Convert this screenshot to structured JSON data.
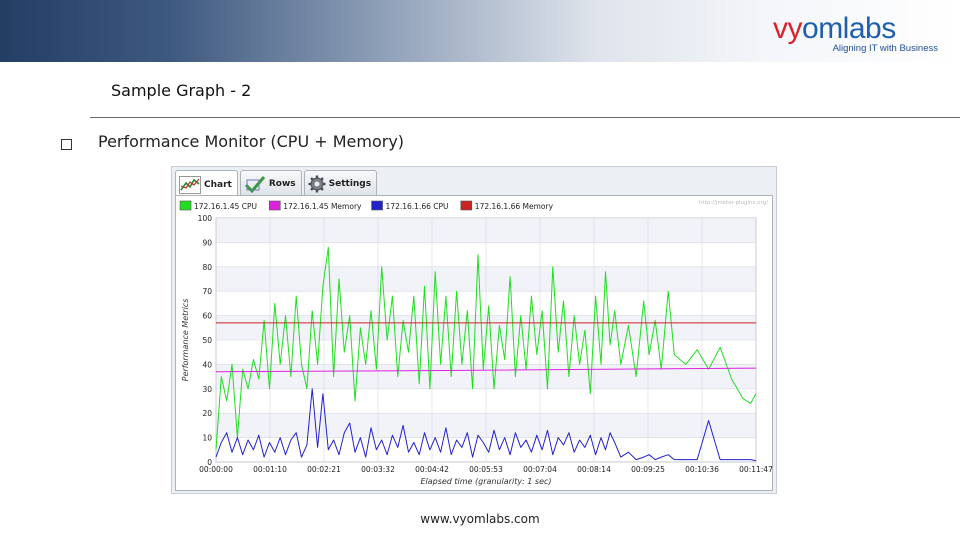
{
  "slide": {
    "title": "Sample Graph - 2",
    "bullet": "Performance Monitor (CPU + Memory)",
    "footer": "www.vyomlabs.com"
  },
  "logo": {
    "word_part1": "vy",
    "word_part2": "o",
    "word_part3": "mlabs",
    "tagline": "Aligning IT with Business"
  },
  "app": {
    "tabs": [
      {
        "label": "Chart",
        "icon": "chart-icon",
        "active": true
      },
      {
        "label": "Rows",
        "icon": "checkmark-icon",
        "active": false
      },
      {
        "label": "Settings",
        "icon": "gear-icon",
        "active": false
      }
    ],
    "watermark": "http://jmeter-plugins.org/"
  },
  "colors": {
    "cpu1": "#22dd22",
    "mem1": "#dd22dd",
    "cpu2": "#2222cc",
    "mem2": "#cc2222"
  },
  "chart_data": {
    "type": "line",
    "ylabel": "Performance Metrics",
    "xlabel": "Elapsed time (granularity: 1 sec)",
    "ylim": [
      0,
      100
    ],
    "yticks": [
      0,
      10,
      20,
      30,
      40,
      50,
      60,
      70,
      80,
      90,
      100
    ],
    "xlim_seconds": [
      0,
      707
    ],
    "xticks": [
      "00:00:00",
      "00:01:10",
      "00:02:21",
      "00:03:32",
      "00:04:42",
      "00:05:53",
      "00:07:04",
      "00:08:14",
      "00:09:25",
      "00:10:36",
      "00:11:47"
    ],
    "legend_position": "top",
    "grid": true,
    "series": [
      {
        "name": "172.16.1.45 CPU",
        "color": "#22dd22",
        "x": [
          0,
          7,
          14,
          21,
          28,
          35,
          42,
          49,
          56,
          63,
          70,
          77,
          84,
          91,
          98,
          105,
          112,
          119,
          126,
          133,
          140,
          147,
          154,
          161,
          168,
          175,
          182,
          189,
          196,
          203,
          210,
          217,
          224,
          231,
          238,
          245,
          252,
          259,
          266,
          273,
          280,
          287,
          294,
          301,
          308,
          315,
          322,
          329,
          336,
          343,
          350,
          357,
          364,
          371,
          378,
          385,
          392,
          399,
          406,
          413,
          420,
          427,
          434,
          441,
          448,
          455,
          462,
          469,
          476,
          483,
          490,
          497,
          504,
          510,
          516,
          522,
          530,
          540,
          550,
          560,
          567,
          575,
          583,
          592,
          600,
          615,
          630,
          645,
          660,
          675,
          690,
          700,
          707
        ],
        "values": [
          5,
          35,
          25,
          40,
          10,
          38,
          30,
          42,
          34,
          58,
          30,
          65,
          40,
          60,
          35,
          68,
          40,
          30,
          62,
          40,
          72,
          88,
          35,
          75,
          45,
          60,
          25,
          55,
          40,
          62,
          38,
          80,
          50,
          68,
          35,
          58,
          45,
          68,
          32,
          72,
          30,
          78,
          40,
          68,
          35,
          70,
          40,
          62,
          30,
          85,
          38,
          64,
          30,
          56,
          42,
          76,
          35,
          60,
          38,
          68,
          44,
          62,
          30,
          80,
          45,
          66,
          35,
          60,
          40,
          54,
          28,
          68,
          40,
          78,
          48,
          62,
          40,
          56,
          35,
          66,
          44,
          58,
          38,
          70,
          44,
          40,
          46,
          38,
          47,
          34,
          26,
          24,
          28
        ]
      },
      {
        "name": "172.16.1.45 Memory",
        "color": "#dd22dd",
        "x": [
          0,
          300,
          707
        ],
        "values": [
          37,
          37.5,
          38.5
        ]
      },
      {
        "name": "172.16.1.66 CPU",
        "color": "#2222cc",
        "x": [
          0,
          7,
          14,
          21,
          28,
          35,
          42,
          49,
          56,
          63,
          70,
          77,
          84,
          91,
          98,
          105,
          112,
          119,
          126,
          133,
          140,
          147,
          154,
          161,
          168,
          175,
          182,
          189,
          196,
          203,
          210,
          217,
          224,
          231,
          238,
          245,
          252,
          259,
          266,
          273,
          280,
          287,
          294,
          301,
          308,
          315,
          322,
          329,
          336,
          343,
          350,
          357,
          364,
          371,
          378,
          385,
          392,
          399,
          406,
          413,
          420,
          427,
          434,
          441,
          448,
          455,
          462,
          469,
          476,
          483,
          490,
          497,
          504,
          510,
          516,
          522,
          530,
          540,
          550,
          560,
          567,
          575,
          583,
          592,
          600,
          615,
          630,
          645,
          660,
          675,
          690,
          700,
          707
        ],
        "values": [
          2,
          8,
          12,
          4,
          10,
          3,
          9,
          5,
          11,
          2,
          8,
          4,
          10,
          3,
          9,
          12,
          2,
          7,
          30,
          6,
          28,
          5,
          9,
          3,
          12,
          16,
          4,
          10,
          2,
          14,
          5,
          9,
          3,
          11,
          6,
          15,
          4,
          8,
          3,
          12,
          5,
          10,
          4,
          14,
          3,
          9,
          6,
          12,
          2,
          11,
          8,
          4,
          13,
          5,
          10,
          3,
          12,
          6,
          9,
          4,
          11,
          5,
          13,
          3,
          10,
          7,
          12,
          4,
          9,
          6,
          11,
          3,
          10,
          5,
          12,
          8,
          2,
          4,
          1,
          2,
          3,
          1,
          2,
          3,
          1,
          1,
          1,
          17,
          1,
          1,
          1,
          1,
          0.5
        ]
      },
      {
        "name": "172.16.1.66 Memory",
        "color": "#cc2222",
        "x": [
          0,
          707
        ],
        "values": [
          57,
          57
        ]
      }
    ]
  }
}
